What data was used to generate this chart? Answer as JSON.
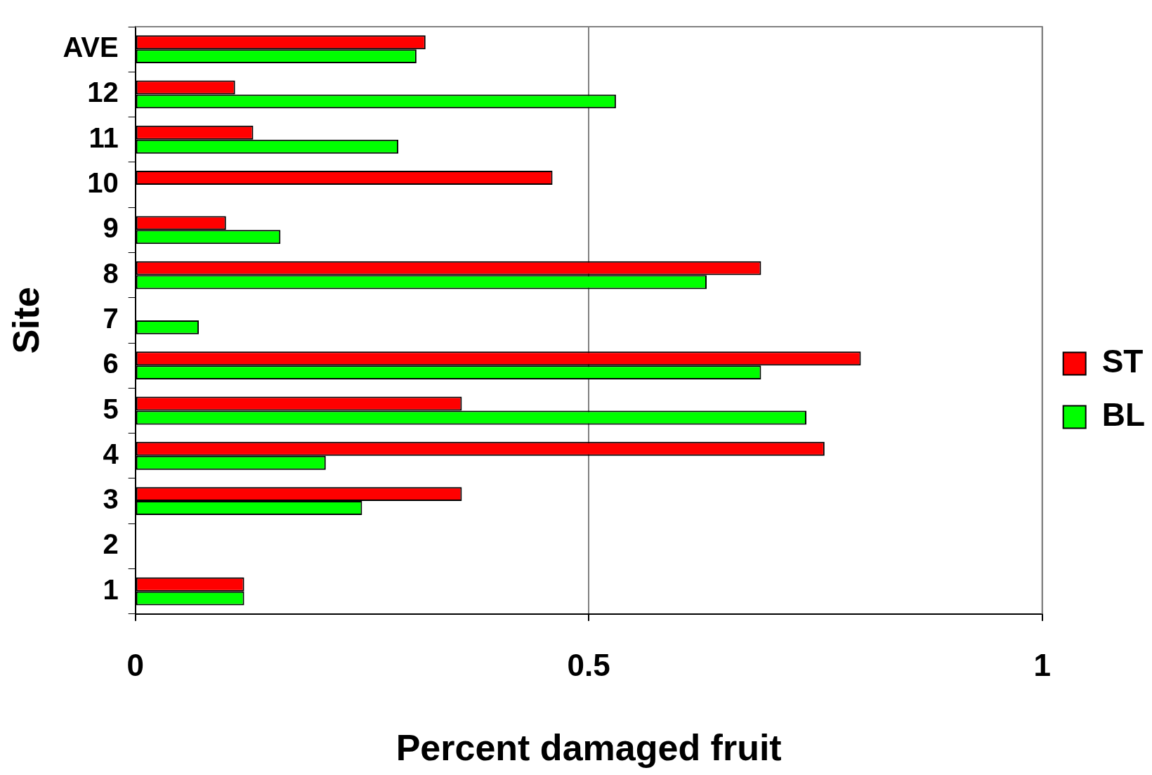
{
  "chart_data": {
    "type": "bar",
    "orientation": "horizontal",
    "xlabel": "Percent damaged fruit",
    "ylabel": "Site",
    "categories": [
      "AVE",
      "12",
      "11",
      "10",
      "9",
      "8",
      "7",
      "6",
      "5",
      "4",
      "3",
      "2",
      "1"
    ],
    "series": [
      {
        "name": "ST",
        "color": "#ff0000",
        "values": [
          0.32,
          0.11,
          0.13,
          0.46,
          0.1,
          0.69,
          null,
          0.8,
          0.36,
          0.76,
          0.36,
          null,
          0.12
        ]
      },
      {
        "name": "BL",
        "color": "#00ff00",
        "values": [
          0.31,
          0.53,
          0.29,
          null,
          0.16,
          0.63,
          0.07,
          0.69,
          0.74,
          0.21,
          0.25,
          null,
          0.12
        ]
      }
    ],
    "xlim": [
      0,
      1
    ],
    "xticks": [
      0,
      0.5,
      1
    ],
    "grid": "x",
    "legend": "right"
  }
}
